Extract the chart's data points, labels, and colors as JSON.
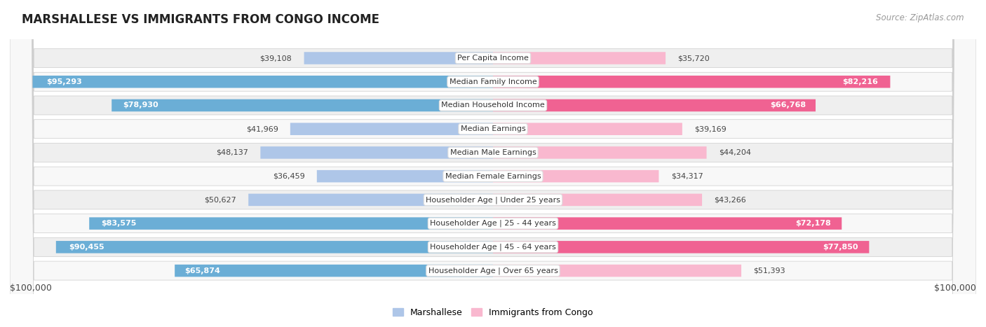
{
  "title": "MARSHALLESE VS IMMIGRANTS FROM CONGO INCOME",
  "source": "Source: ZipAtlas.com",
  "categories": [
    "Per Capita Income",
    "Median Family Income",
    "Median Household Income",
    "Median Earnings",
    "Median Male Earnings",
    "Median Female Earnings",
    "Householder Age | Under 25 years",
    "Householder Age | 25 - 44 years",
    "Householder Age | 45 - 64 years",
    "Householder Age | Over 65 years"
  ],
  "marshallese_values": [
    39108,
    95293,
    78930,
    41969,
    48137,
    36459,
    50627,
    83575,
    90455,
    65874
  ],
  "congo_values": [
    35720,
    82216,
    66768,
    39169,
    44204,
    34317,
    43266,
    72178,
    77850,
    51393
  ],
  "marshallese_color_light": "#aec6e8",
  "marshallese_color_dark": "#6baed6",
  "congo_color_light": "#f9b8cf",
  "congo_color_dark": "#f06292",
  "row_bg_odd": "#efefef",
  "row_bg_even": "#f8f8f8",
  "max_value": 100000,
  "x_label_left": "$100,000",
  "x_label_right": "$100,000",
  "legend_marshallese": "Marshallese",
  "legend_congo": "Immigrants from Congo",
  "title_fontsize": 12,
  "source_fontsize": 8.5,
  "bar_label_fontsize": 8,
  "category_fontsize": 8,
  "axis_label_fontsize": 9,
  "dark_threshold": 60000
}
